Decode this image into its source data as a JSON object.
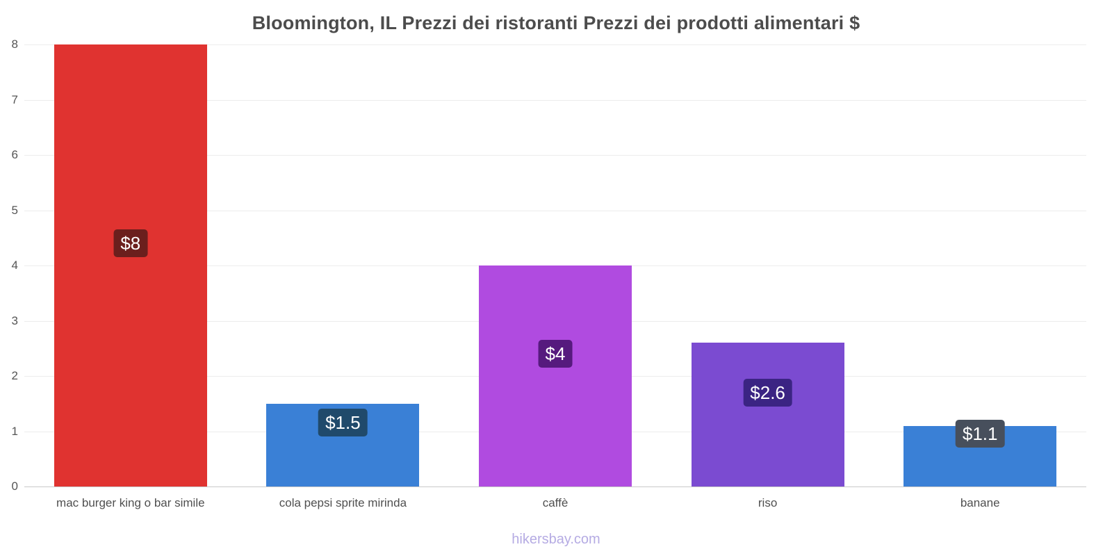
{
  "title": "Bloomington, IL Prezzi dei ristoranti Prezzi dei prodotti alimentari $",
  "footer": "hikersbay.com",
  "chart_data": {
    "type": "bar",
    "title": "Bloomington, IL Prezzi dei ristoranti Prezzi dei prodotti alimentari $",
    "categories": [
      "mac burger king o bar simile",
      "cola pepsi sprite mirinda",
      "caffè",
      "riso",
      "banane"
    ],
    "values": [
      8,
      1.5,
      4,
      2.6,
      1.1
    ],
    "value_labels": [
      "$8",
      "$1.5",
      "$4",
      "$2.6",
      "$1.1"
    ],
    "bar_colors": [
      "#e03330",
      "#3a80d6",
      "#b04be0",
      "#7b4bd1",
      "#3a80d6"
    ],
    "label_bg_colors": [
      "#6b1f1d",
      "#204a6b",
      "#561a7e",
      "#3b2483",
      "#474f5c"
    ],
    "xlabel": "",
    "ylabel": "",
    "ylim": [
      0,
      8
    ],
    "yticks": [
      0,
      1,
      2,
      3,
      4,
      5,
      6,
      7,
      8
    ],
    "grid": true,
    "legend": false,
    "watermark": "hikersbay.com"
  }
}
